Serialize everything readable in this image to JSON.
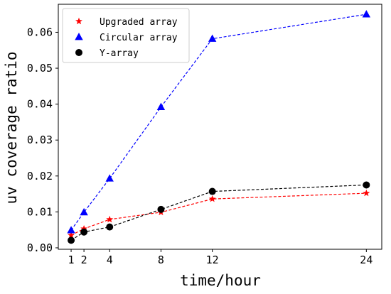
{
  "chart_data": {
    "type": "line",
    "title": "",
    "xlabel": "time/hour",
    "ylabel": "uv coverage ratio",
    "x": [
      1,
      2,
      4,
      8,
      12,
      24
    ],
    "x_ticks": [
      "1",
      "2",
      "4",
      "8",
      "12",
      "24"
    ],
    "y_ticks": [
      "0.00",
      "0.01",
      "0.02",
      "0.03",
      "0.04",
      "0.05",
      "0.06"
    ],
    "xlim": [
      0,
      25.2
    ],
    "ylim": [
      -0.0004,
      0.0678
    ],
    "grid": false,
    "legend_position": "top-left",
    "series": [
      {
        "name": "Upgraded array",
        "marker": "star",
        "color": "#ff0000",
        "linestyle": "dashed",
        "values": [
          0.0035,
          0.0053,
          0.0079,
          0.0099,
          0.0136,
          0.0152
        ]
      },
      {
        "name": "Circular array",
        "marker": "triangle",
        "color": "#0000ff",
        "linestyle": "dashed",
        "values": [
          0.0049,
          0.0099,
          0.0193,
          0.0392,
          0.0582,
          0.065
        ]
      },
      {
        "name": "Y-array",
        "marker": "circle",
        "color": "#000000",
        "linestyle": "dashed",
        "values": [
          0.0021,
          0.0044,
          0.0058,
          0.0107,
          0.0157,
          0.0175
        ]
      }
    ]
  }
}
